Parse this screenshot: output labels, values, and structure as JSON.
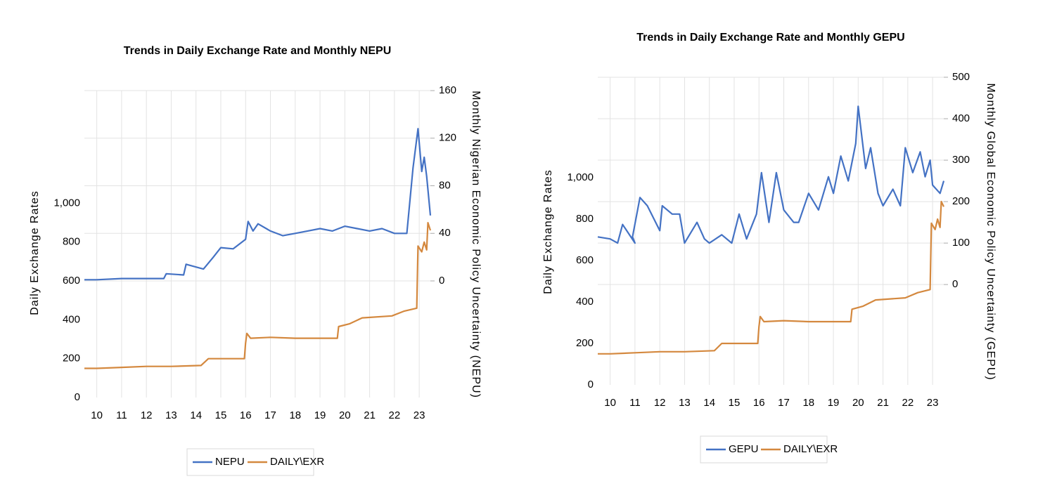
{
  "chart_data": [
    {
      "type": "line",
      "title": "Trends in Daily Exchange Rate and Monthly NEPU",
      "y_label": "Daily Exchange Rates",
      "y2_label": "Monthly Nigerian Economic Policy Uncertainty (NEPU)",
      "xlim": [
        9.5,
        23.45
      ],
      "xticks": [
        10,
        11,
        12,
        13,
        14,
        15,
        16,
        17,
        18,
        19,
        20,
        21,
        22,
        23
      ],
      "ylim": [
        0,
        1580
      ],
      "yticks": [
        0,
        200,
        400,
        600,
        800,
        {
          "value": 1000,
          "label": "1,000"
        }
      ],
      "y2lim": [
        -98,
        160
      ],
      "y2ticks": [
        0,
        40,
        80,
        120,
        160
      ],
      "grid": true,
      "legend": "bottom",
      "series": [
        {
          "name": "NEPU",
          "color": "#4472c4",
          "axis": "y2",
          "x": [
            9.5,
            10,
            11,
            12,
            12.7,
            12.8,
            13.5,
            13.6,
            14.3,
            14.7,
            15,
            15.5,
            16,
            16.1,
            16.3,
            16.5,
            17,
            17.5,
            18,
            18.5,
            19,
            19.5,
            20,
            20.5,
            21,
            21.5,
            22,
            22.5,
            22.75,
            22.95,
            23.1,
            23.2,
            23.3,
            23.45
          ],
          "values": [
            1,
            1,
            2,
            2,
            2,
            6,
            5,
            14,
            10,
            20,
            28,
            27,
            35,
            50,
            42,
            48,
            42,
            38,
            40,
            42,
            44,
            42,
            46,
            44,
            42,
            44,
            40,
            40,
            95,
            128,
            92,
            104,
            88,
            55
          ]
        },
        {
          "name": "DAILY\\EXR",
          "color": "#d4883e",
          "axis": "y",
          "x": [
            9.5,
            10,
            11,
            12,
            13,
            14.2,
            14.5,
            15.95,
            16.0,
            16.05,
            16.2,
            17,
            18,
            19.7,
            19.75,
            20.2,
            20.7,
            21.9,
            22.4,
            22.9,
            22.95,
            23.1,
            23.2,
            23.3,
            23.35,
            23.45
          ],
          "values": [
            150,
            150,
            155,
            160,
            160,
            165,
            200,
            200,
            280,
            330,
            305,
            310,
            305,
            305,
            365,
            380,
            410,
            420,
            445,
            460,
            780,
            750,
            800,
            760,
            900,
            860
          ]
        }
      ]
    },
    {
      "type": "line",
      "title": "Trends in Daily Exchange Rate and Monthly GEPU",
      "y_label": "Daily Exchange Rates",
      "y2_label": "Monthly Global Economic Policy Uncertainty (GEPU)",
      "xlim": [
        9.5,
        23.45
      ],
      "xticks": [
        10,
        11,
        12,
        13,
        14,
        15,
        16,
        17,
        18,
        19,
        20,
        21,
        22,
        23
      ],
      "ylim": [
        0,
        1485
      ],
      "yticks": [
        0,
        200,
        400,
        600,
        800,
        {
          "value": 1000,
          "label": "1,000"
        }
      ],
      "y2lim": [
        -242,
        500
      ],
      "y2ticks": [
        0,
        100,
        200,
        300,
        400,
        500
      ],
      "grid": true,
      "legend": "bottom",
      "series": [
        {
          "name": "GEPU",
          "color": "#4472c4",
          "axis": "y2",
          "x": [
            9.5,
            10,
            10.3,
            10.5,
            11,
            10.9,
            11.2,
            11.5,
            12,
            12.1,
            12.5,
            12.8,
            13,
            13.5,
            13.8,
            14,
            14.5,
            14.9,
            15.2,
            15.5,
            15.9,
            16.1,
            16.4,
            16.7,
            17,
            17.4,
            17.6,
            18,
            18.4,
            18.8,
            19,
            19.3,
            19.6,
            19.9,
            20,
            20.3,
            20.5,
            20.8,
            21,
            21.4,
            21.7,
            21.9,
            22.2,
            22.5,
            22.7,
            22.9,
            23,
            23.3,
            23.45
          ],
          "values": [
            115,
            110,
            100,
            145,
            100,
            115,
            210,
            190,
            130,
            190,
            170,
            170,
            100,
            150,
            110,
            100,
            120,
            100,
            170,
            110,
            170,
            270,
            150,
            270,
            180,
            150,
            150,
            220,
            180,
            260,
            220,
            310,
            250,
            340,
            430,
            280,
            330,
            220,
            190,
            230,
            190,
            330,
            270,
            320,
            260,
            300,
            240,
            220,
            250
          ]
        },
        {
          "name": "DAILY\\EXR",
          "color": "#d4883e",
          "axis": "y",
          "x": [
            9.5,
            10,
            11,
            12,
            13,
            14.2,
            14.5,
            15.95,
            16.0,
            16.05,
            16.2,
            17,
            18,
            19.7,
            19.75,
            20.2,
            20.7,
            21.9,
            22.4,
            22.9,
            22.95,
            23.1,
            23.2,
            23.3,
            23.35,
            23.45
          ],
          "values": [
            150,
            150,
            155,
            160,
            160,
            165,
            200,
            200,
            280,
            330,
            305,
            310,
            305,
            305,
            365,
            380,
            410,
            420,
            445,
            460,
            780,
            750,
            800,
            760,
            885,
            860
          ]
        }
      ]
    }
  ]
}
